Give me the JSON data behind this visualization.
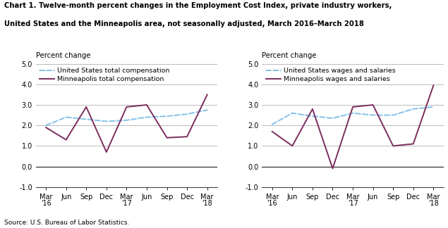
{
  "title_line1": "Chart 1. Twelve-month percent changes in the Employment Cost Index, private industry workers,",
  "title_line2": "United States and the Minneapolis area, not seasonally adjusted, March 2016–March 2018",
  "source": "Source: U.S. Bureau of Labor Statistics.",
  "x_labels": [
    "Mar\n'16",
    "Jun",
    "Sep",
    "Dec",
    "Mar\n'17",
    "Jun",
    "Sep",
    "Dec",
    "Mar\n'18"
  ],
  "x_positions": [
    0,
    1,
    2,
    3,
    4,
    5,
    6,
    7,
    8
  ],
  "ylabel": "Percent change",
  "ylim": [
    -1.0,
    5.0
  ],
  "yticks": [
    -1.0,
    0.0,
    1.0,
    2.0,
    3.0,
    4.0,
    5.0
  ],
  "left_us": [
    2.0,
    2.4,
    2.3,
    2.2,
    2.25,
    2.4,
    2.45,
    2.55,
    2.75
  ],
  "left_mpls": [
    1.9,
    1.3,
    2.9,
    0.7,
    2.9,
    3.0,
    1.4,
    1.45,
    3.5
  ],
  "left_legend_us": "United States total compensation",
  "left_legend_mpls": "Minneapolis total compensation",
  "right_us": [
    2.05,
    2.6,
    2.45,
    2.35,
    2.6,
    2.5,
    2.5,
    2.8,
    2.9
  ],
  "right_mpls": [
    1.7,
    1.0,
    2.8,
    -0.1,
    2.9,
    3.0,
    1.0,
    1.1,
    3.95
  ],
  "right_legend_us": "United States wages and salaries",
  "right_legend_mpls": "Minneapolis wages and salaries",
  "us_color": "#85C1E9",
  "mpls_color": "#7B2D5E",
  "linewidth": 1.4
}
